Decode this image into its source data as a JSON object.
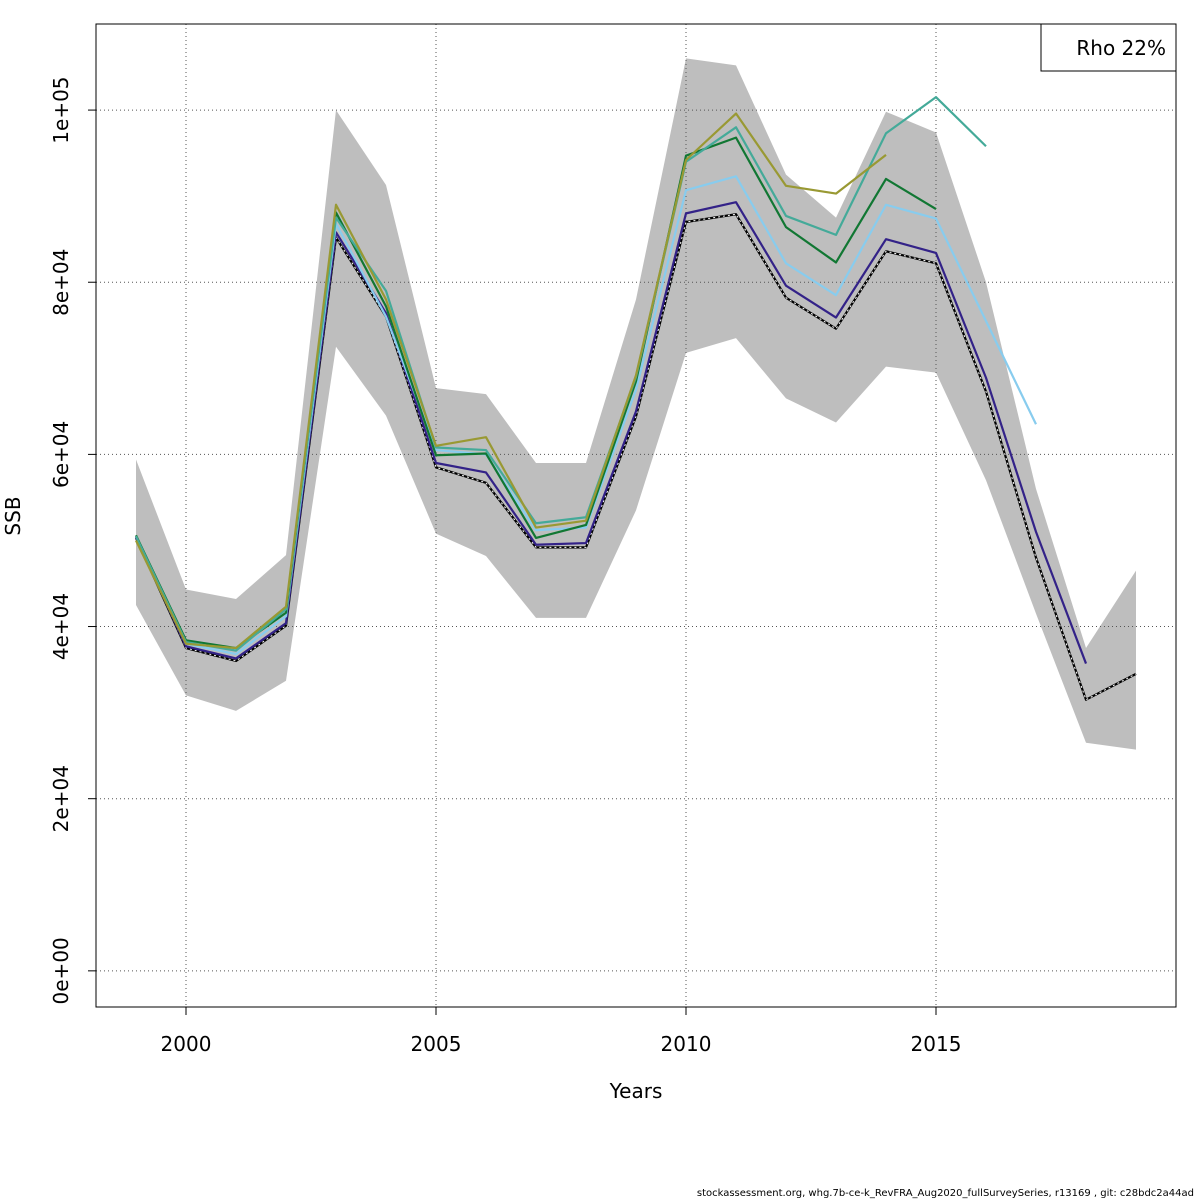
{
  "chart_data": {
    "type": "line",
    "xlabel": "Years",
    "ylabel": "SSB",
    "xlim": [
      1998.2,
      2019.8
    ],
    "ylim": [
      -4200,
      110000
    ],
    "x_ticks": [
      2000,
      2005,
      2010,
      2015
    ],
    "x_tick_labels": [
      "2000",
      "2005",
      "2010",
      "2015"
    ],
    "y_ticks": [
      0,
      20000,
      40000,
      60000,
      80000,
      100000
    ],
    "y_tick_labels": [
      "0e+00",
      "2e+04",
      "4e+04",
      "6e+04",
      "8e+04",
      "1e+05"
    ],
    "grid": true,
    "legend": {
      "placement": "top-right",
      "text": "Rho 22%"
    },
    "confidence_band": {
      "x": [
        1999,
        2000,
        2001,
        2002,
        2003,
        2004,
        2005,
        2006,
        2007,
        2008,
        2009,
        2010,
        2011,
        2012,
        2013,
        2014,
        2015,
        2016,
        2017,
        2018,
        2019
      ],
      "lower": [
        42500,
        32000,
        30200,
        33700,
        72500,
        64500,
        50800,
        48200,
        41000,
        41000,
        53500,
        71800,
        73500,
        66500,
        63700,
        70200,
        69500,
        57000,
        41500,
        26500,
        25700
      ],
      "upper": [
        59400,
        44300,
        43200,
        48300,
        100000,
        91300,
        67700,
        67000,
        59000,
        59000,
        78000,
        106000,
        105200,
        92500,
        87500,
        99800,
        97400,
        80000,
        56000,
        37500,
        46500
      ],
      "color": "#bebebe"
    },
    "series": [
      {
        "color": "#000000",
        "dashed_overlay": true,
        "x": [
          1999,
          2000,
          2001,
          2002,
          2003,
          2004,
          2005,
          2006,
          2007,
          2008,
          2009,
          2010,
          2011,
          2012,
          2013,
          2014,
          2015,
          2016,
          2017,
          2018,
          2019
        ],
        "values": [
          50300,
          37500,
          36000,
          40100,
          85200,
          76000,
          58500,
          56700,
          49200,
          49200,
          64400,
          87000,
          87900,
          78200,
          74600,
          83600,
          82200,
          67300,
          48000,
          31500,
          34500
        ]
      },
      {
        "color": "#332288",
        "x": [
          1999,
          2000,
          2001,
          2002,
          2003,
          2004,
          2005,
          2006,
          2007,
          2008,
          2009,
          2010,
          2011,
          2012,
          2013,
          2014,
          2015,
          2016,
          2017,
          2018
        ],
        "values": [
          50400,
          37700,
          36300,
          40400,
          85800,
          76400,
          59000,
          57900,
          49500,
          49700,
          65000,
          88000,
          89300,
          79600,
          75900,
          85000,
          83400,
          68900,
          51000,
          35700
        ]
      },
      {
        "color": "#88CCEE",
        "x": [
          1999,
          2000,
          2001,
          2002,
          2003,
          2004,
          2005,
          2006,
          2007,
          2008,
          2009,
          2010,
          2011,
          2012,
          2013,
          2014,
          2015,
          2016,
          2017
        ],
        "values": [
          50500,
          38000,
          36800,
          41200,
          86800,
          76000,
          60500,
          60000,
          51200,
          51500,
          67500,
          90700,
          92300,
          82200,
          78500,
          89000,
          87400,
          75500,
          63500
        ]
      },
      {
        "color": "#117733",
        "x": [
          1999,
          2000,
          2001,
          2002,
          2003,
          2004,
          2005,
          2006,
          2007,
          2008,
          2009,
          2010,
          2011,
          2012,
          2013,
          2014,
          2015
        ],
        "values": [
          50600,
          38400,
          37500,
          41600,
          88100,
          77200,
          59900,
          60100,
          50300,
          51800,
          68500,
          94700,
          96800,
          86400,
          82300,
          92000,
          88500
        ]
      },
      {
        "color": "#44AA99",
        "x": [
          1999,
          2000,
          2001,
          2002,
          2003,
          2004,
          2005,
          2006,
          2007,
          2008,
          2009,
          2010,
          2011,
          2012,
          2013,
          2014,
          2015,
          2016
        ],
        "values": [
          50500,
          38200,
          37200,
          42000,
          87500,
          79000,
          60800,
          60500,
          52000,
          52700,
          69000,
          94000,
          98000,
          87700,
          85500,
          97300,
          101500,
          95800
        ]
      },
      {
        "color": "#999933",
        "x": [
          1999,
          2000,
          2001,
          2002,
          2003,
          2004,
          2005,
          2006,
          2007,
          2008,
          2009,
          2010,
          2011,
          2012,
          2013,
          2014
        ],
        "values": [
          50000,
          38000,
          37500,
          42300,
          89000,
          78000,
          61000,
          62000,
          51500,
          52300,
          69200,
          94200,
          99600,
          91200,
          90300,
          94800
        ]
      }
    ]
  },
  "footer_text": "stockassessment.org, whg.7b-ce-k_RevFRA_Aug2020_fullSurveySeries, r13169 , git: c28bdc2a44ad"
}
